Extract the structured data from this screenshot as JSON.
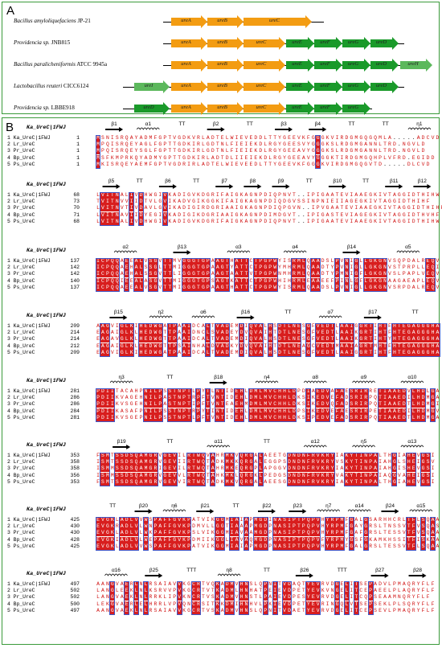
{
  "panelA": {
    "letter": "A",
    "operons": [
      {
        "organism_italic": "Bacillus amyloliquefaciens",
        "organism_strain": "JP-21",
        "genes": [
          {
            "name": "ureA",
            "color": "orange"
          },
          {
            "name": "ureB",
            "color": "orange"
          },
          {
            "name": "ureC",
            "color": "orange"
          }
        ]
      },
      {
        "organism_italic": "Providencia sp.",
        "organism_strain": "JNB815",
        "genes": [
          {
            "name": "ureA",
            "color": "orange"
          },
          {
            "name": "ureB",
            "color": "orange"
          },
          {
            "name": "ureC",
            "color": "orange"
          },
          {
            "name": "ureE",
            "color": "green"
          },
          {
            "name": "ureF",
            "color": "green"
          },
          {
            "name": "ureG",
            "color": "green"
          },
          {
            "name": "ureD",
            "color": "green"
          }
        ]
      },
      {
        "organism_italic": "Bacillus paralicheniformis",
        "organism_strain": "ATCC 9945a",
        "genes": [
          {
            "name": "ureA",
            "color": "orange"
          },
          {
            "name": "ureB",
            "color": "orange"
          },
          {
            "name": "ureC",
            "color": "orange"
          },
          {
            "name": "ureE",
            "color": "green"
          },
          {
            "name": "ureF",
            "color": "green"
          },
          {
            "name": "ureG",
            "color": "green"
          },
          {
            "name": "ureD",
            "color": "green"
          },
          {
            "name": "ureH",
            "color": "lightgreen"
          }
        ]
      },
      {
        "organism_italic": "Lactobacillus reuteri",
        "organism_strain": "CICC6124",
        "genes": [
          {
            "name": "ureI",
            "color": "lightgreen"
          },
          {
            "name": "ureA",
            "color": "orange"
          },
          {
            "name": "ureB",
            "color": "orange"
          },
          {
            "name": "ureC",
            "color": "orange"
          },
          {
            "name": "ureE",
            "color": "green"
          },
          {
            "name": "ureF",
            "color": "green"
          },
          {
            "name": "ureG",
            "color": "green"
          },
          {
            "name": "ureD",
            "color": "green"
          }
        ]
      },
      {
        "organism_italic": "Providencia sp.",
        "organism_strain": "LBBE918",
        "genes": [
          {
            "name": "ureD",
            "color": "green"
          },
          {
            "name": "ureA",
            "color": "orange"
          },
          {
            "name": "ureB",
            "color": "orange"
          },
          {
            "name": "ureC",
            "color": "orange"
          },
          {
            "name": "ureE",
            "color": "green"
          },
          {
            "name": "ureF",
            "color": "green"
          },
          {
            "name": "ureG",
            "color": "green"
          }
        ]
      }
    ]
  },
  "panelB": {
    "letter": "B",
    "reference_label": "Ka_UreC|1FWJ",
    "row_names": [
      "1 Ka_UreC|1FWJ",
      "2 Lr_UreC",
      "3 Pr_UreC",
      "4 Bp_UreC",
      "5 Ps_UreC"
    ],
    "blocks": [
      {
        "ss": "β1 α1 TT β2 TT β3 β4 TT TT η1",
        "starts": [
          "1",
          "1",
          "1",
          "1",
          "1"
        ],
        "seqs": [
          "MSNISRQAYADMFGPTVGDKVRLADTELWIEVEDDLTTYGEEVKFGGGKVIRDGMGQGQMLA.....ADCVD",
          "MPQISRQEYAGLFGPTTGDKIRLGDTNLFIEIEKDLRGYGEESVYGGGKSLRDGMGANNLTRD.NGVLD",
          "MPQISRQEYSGLFGPTTGDKIRLGDTNLFIEIEKDLRGYGEEAVYGGGKSLRDGMGANNLTRD.NGVLD",
          "MSFKMPRKQYADMYGPTTGDKIRLADTDLIIEIEKDLRGYGEEAVYGGGKTIRDGMGQHPLVFRD.EGIDD",
          "MKISRQEYAEMFGPTVGDRIRLADTELWIEVEEDLTTYGEEVKFGGGKVIRDGMGQGVTD.....DLCVD"
        ]
      },
      {
        "ss": "β5 TT β6 TT β7 β8 β9 TT β10 TT β11 β12",
        "starts": [
          "68",
          "73",
          "70",
          "71",
          "68"
        ],
        "seqs": [
          "LVITNALIVDHWGIVKADIGVKDGRIFAIGKAGNPDIQPNVT..IPIGAATEVIAAEGKIVTAGGIDTHIHW",
          "TVITNVVIIDTVLGVIKADVGIKGGKIFAIGKAGNPDIQDGVSSINPNIEIIAGEGKIVTAGGIDTHIHF",
          "LVITNVTIVDAVLGVIKADIGIRDGRIAAIGKAGNPDIQPGVN..IPVGAATEVIAAEGKIVTAGGIDTHIHF",
          "LVITNAVIIDYEGIVKADIGIKDGRIAAIGKAGNPDIMDGVT..IPIGASTEVIAGEGKIVTAGGIDTHVHF",
          "LVITNALIVDHWGIVKADIGVKDGRIFAIGKAGNPDIQPNVT..IPIGAATEVIAAEGKIVTAGGIDTHIHW"
        ]
      },
      {
        "ss": "α2 β13 α3 α4 β14 α5",
        "starts": [
          "137",
          "142",
          "142",
          "140",
          "137"
        ],
        "seqs": [
          "ICPQQAEEALVSGVTTMVGGGTGPAAGTHATTCTPGPWYISRMLQAADSLPVNIGLLGKGNVSQPDALREQV",
          "ICPQQAEHALSSGLTTMIGGGTGPAAGTYATTCTPGPWYMHRMLQAADTYPVNIGLLGKGNVSTPRPLLEQI",
          "ICPQQAEHALSSGVTTLIGGGTGPAAGTAATTVTPGPWNMHRMLQAADTYPMNIGFLGKGNVSLPAPLVEQV",
          "ICPQQIEEALASGVTTMIGGGTGPSAGTKATTCTPGPWHIHRMLEAAEEFPINLGFLGKGNAAGAEAPLEQV",
          "ICPQQAEEALVSGVTTMIGGGTGPAAGTHATTCTPGPWYISRMLQAADSLPVNIGLLGKGNVSRPDALREQV"
        ]
      },
      {
        "ss": "β15 η2 α6 β16 TT α7 β17 TT",
        "starts": [
          "209",
          "214",
          "214",
          "212",
          "209"
        ],
        "seqs": [
          "AAGVIGLKIHEDWGATPAAIDCALTVADEMDIQVALHSDTLNESGFVEDTLAAIGGRTIHTFHTEGAGGGHA",
          "EAGAIGLKLHEDWGTTPAAIDNCLSVADEYDVQVAIHTDTLNESGFVEDTLAAIKGRTIHTFHTEGAGGGHA",
          "EAGAVGLKLHEDWGTTPAAIDCALTVADEMDIQVALHSDTLNESGFVEDTLAAIKGRTIHTYHTEGAGGGHA",
          "EAGAIGLKLHEDWGTTPSAINHALDVADKYDVQVAIHTDTLNEAGCVEDTMAAIAGRTMHTFHTEGAGGGHA",
          "EAGVIGLKIHEDWGATPAAIDCALTVADEMDIQVALHSDTLNESGFVEDTLAAIGGRTIHTFHTEGAGGGHA"
        ]
      },
      {
        "ss": "η3 TT β18 η4 α8 α9 α10",
        "starts": [
          "281",
          "286",
          "286",
          "284",
          "281"
        ],
        "seqs": [
          "PDIITACAHPNILPSSTNPTLPYTLNTIDEHLDMLMVCHHLDPDIAEDVAFAESRIRRETIAAEDVLHDLGA",
          "PDIIKVAGEHNILPASTNPTRPFTVNTIDEHLDMLMVCHHLDKSIKEDVEFADSRIRPQTIAAEDILHDMGA",
          "PDIIKVSGEHNILPASTNPTIPFTVNTEAEHMDMLMVCHHLDKSIKEDVQFADSRIRPQTIAAEDTLHDMGI",
          "PDIIKASAFPNILPSSTNPTRPYTINTIDEHLDMLMVCHHLDPSIKEDVEFAESRIRPETIAAEDILHDMGV",
          "PDIIKVSGEPNILPSSTNPTLPFTVNTIDEHLDMLMVCHHLDKSIPEDVEFADSRIRPQTIAAEDTLHDMGA"
        ]
      },
      {
        "ss": "β19 TT α11 TT α12 η5 α13",
        "starts": [
          "353",
          "358",
          "358",
          "356",
          "353"
        ],
        "seqs": [
          "FSMTSSDSQAMGRVGEVILRTWQVAHRMKVQRGALAEETGDNDNFRVKRYIAKYTINPALTHGIAHEVGSI",
          "ISMTSSDSQAMGRVGEVIIRTWQTADKMKKQRGALEGGPSDNDNFRVKRYVSKYTINPAIAHGLSHEIGSV",
          "ISMMSSDSQAMGRIGEVILRTWQTAHRMKEQRGPLAPGGVDNDNFRVKRYIAKYTINPAIAHGISHEVGSI",
          "ISMMSSDSQAMGRVGEVVLRTWQTAHKMKLQRGKLPEDGSDNDNFRVKRYVAKYTINPAIAQGVAHEIGSI",
          "FSMTSSDSQAMGRVGEVVIRTWQTADKMKVQRGALAEESGDNDNFRVKRYIAKYTINPALTHGIAHEVGSI"
        ]
      },
      {
        "ss": "TT β20 η6 β21 TT β22 β23 η7 α14 β24 α15",
        "starts": [
          "425",
          "430",
          "430",
          "428",
          "425"
        ],
        "seqs": [
          "EVGKLADLVVWSPAFFGVKPATVIKGGMIAIAPMGDINASIPTPQPVHYRPMFGALGSARHHCRLTFLSQAA",
          "EVGKRADLVLWNPAFFGVKPDMVLLGGTIAAAPMGDPNASIPTPQPVHYRPMFGAYGRSLTNSSVTFVSQAS",
          "EVGKLADLVLWKPAFFGVKPSLVIKGGMIAVAAMGDPNASIPTPQPVHYRPMFGAFGRSLTESSVTFVSQAA",
          "EVGKIADLVLWEPAFFGVKPDMIIKGGLIAVAQMGDPNASIPTPQPVFYRPMYGSFGKAMKHSSITFISKAA",
          "EVGKLADLVVWSPAFFGVKPATVIKGGMIAIAPMGDPNASIPTPQPVHYRPMFGALGRSLTESSVTFLSQAA"
        ]
      },
      {
        "ss": "α16 β25 TTT η8 TT β26 TTT β27 β28",
        "starts": [
          "497",
          "502",
          "502",
          "500",
          "497"
        ],
        "seqs": [
          "AANGVAERLNLRSAIAVVKGCRTVQKADMVHNSLQPNITVDAQTYEVRVDGELITSEPADVLPMAQRYFLF",
          "LANGLEEKLNLKSRVVPVKGCRTVTKADMLHNHATPEIEVDPETYEVKVNGELITCEPAEELPLAQRYFLF",
          "LANGVAEKLNLRRKLIPVKNCRTVSKADMVHNSTLPAIEVDPESYEVRVDGELITCQPSEAAMNQRYFLF",
          "LEKGVAERLELHRRLVPVQNCRSITKKDMIHNHVLPKIEVDPETYEVRINGQLVTSEPSEKLPLSQRYFLF",
          "AANGVAEKLNLRSAIAVVKGCRTVSKADMVHNSLQPNITVDAETYEVRVDGELITCEPSEVLPMAQRYFLF"
        ]
      }
    ]
  }
}
